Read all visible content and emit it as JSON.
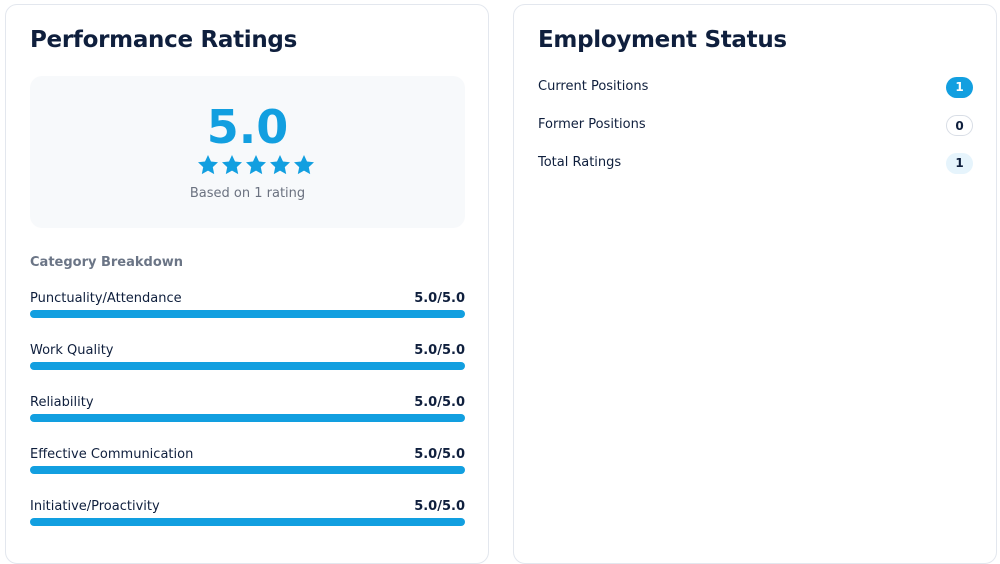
{
  "performance": {
    "title": "Performance Ratings",
    "overall_score": "5.0",
    "based_on": "Based on 1 rating",
    "breakdown_title": "Category Breakdown",
    "categories": [
      {
        "label": "Punctuality/Attendance",
        "score": "5.0/5.0"
      },
      {
        "label": "Work Quality",
        "score": "5.0/5.0"
      },
      {
        "label": "Reliability",
        "score": "5.0/5.0"
      },
      {
        "label": "Effective Communication",
        "score": "5.0/5.0"
      },
      {
        "label": "Initiative/Proactivity",
        "score": "5.0/5.0"
      }
    ]
  },
  "employment": {
    "title": "Employment Status",
    "items": [
      {
        "label": "Current Positions",
        "count": "1"
      },
      {
        "label": "Former Positions",
        "count": "0"
      },
      {
        "label": "Total Ratings",
        "count": "1"
      }
    ]
  }
}
